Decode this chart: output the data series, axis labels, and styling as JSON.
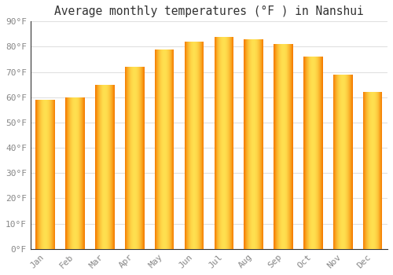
{
  "months": [
    "Jan",
    "Feb",
    "Mar",
    "Apr",
    "May",
    "Jun",
    "Jul",
    "Aug",
    "Sep",
    "Oct",
    "Nov",
    "Dec"
  ],
  "values": [
    59,
    60,
    65,
    72,
    79,
    82,
    84,
    83,
    81,
    76,
    69,
    62
  ],
  "bar_color_light": "#FFB300",
  "bar_color_dark": "#F57C00",
  "bar_color_center": "#FFD54F",
  "title": "Average monthly temperatures (°F ) in Nanshui",
  "ylim": [
    0,
    90
  ],
  "ytick_step": 10,
  "background_color": "#ffffff",
  "plot_bg_color": "#ffffff",
  "grid_color": "#e0e0e0",
  "title_fontsize": 10.5,
  "tick_fontsize": 8,
  "tick_color": "#888888",
  "spine_color": "#333333",
  "bar_width": 0.65
}
